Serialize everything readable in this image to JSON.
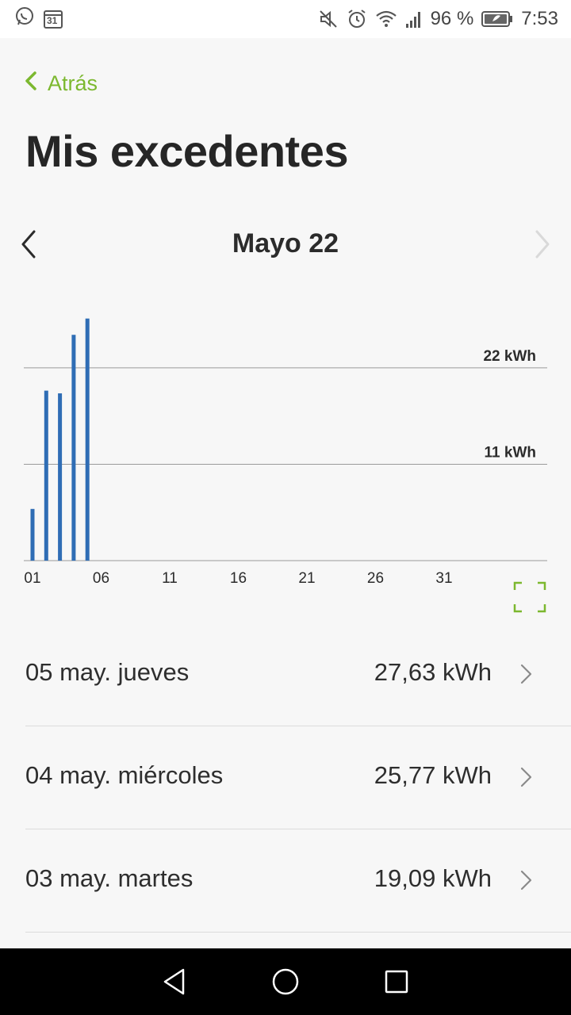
{
  "status_bar": {
    "battery_percent": "96 %",
    "time": "7:53",
    "calendar_day": "31",
    "icons": [
      "whatsapp-icon",
      "calendar-icon",
      "mute-icon",
      "alarm-icon",
      "wifi-icon",
      "signal-icon",
      "battery-icon"
    ]
  },
  "header": {
    "back_label": "Atrás",
    "title": "Mis excedentes"
  },
  "month_nav": {
    "label": "Mayo 22"
  },
  "chart_data": {
    "type": "bar",
    "x_ticks": [
      "01",
      "06",
      "11",
      "16",
      "21",
      "26",
      "31"
    ],
    "days": [
      1,
      2,
      3,
      4,
      5
    ],
    "values": [
      5.9,
      19.4,
      19.09,
      25.77,
      27.63
    ],
    "unit": "kWh",
    "y_gridlines": [
      {
        "value": 11,
        "label": "11 kWh"
      },
      {
        "value": 22,
        "label": "22 kWh"
      }
    ],
    "ylim": [
      0,
      28
    ],
    "x_range": [
      1,
      38
    ],
    "color": "#2f6db5"
  },
  "day_list": [
    {
      "label": "05 may. jueves",
      "value": "27,63 kWh"
    },
    {
      "label": "04 may. miércoles",
      "value": "25,77 kWh"
    },
    {
      "label": "03 may. martes",
      "value": "19,09 kWh"
    }
  ],
  "colors": {
    "accent": "#7cb82f",
    "bar": "#2f6db5",
    "text": "#2b2b2b",
    "background": "#f7f7f7"
  }
}
